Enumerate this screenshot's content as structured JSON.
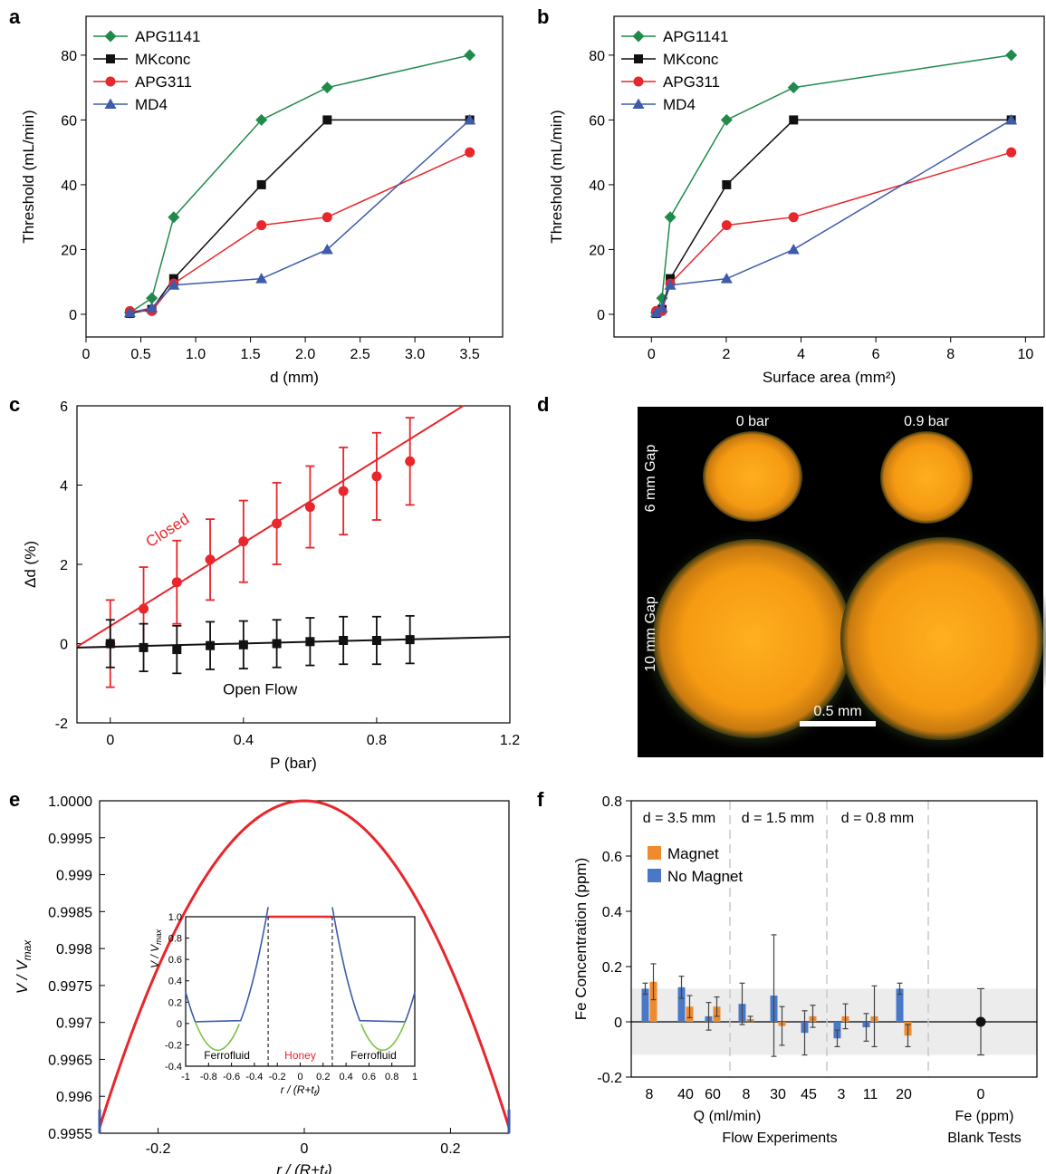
{
  "panel_letters": {
    "a": "a",
    "b": "b",
    "c": "c",
    "d": "d",
    "e": "e",
    "f": "f"
  },
  "colors": {
    "green": "#1f8a4a",
    "black": "#111111",
    "red": "#e8262b",
    "blue": "#3d5ba9",
    "orange": "#ef8a2f",
    "bar_blue": "#4a78c8",
    "band": "#ececec"
  },
  "chart_data": [
    {
      "id": "a",
      "type": "line",
      "xlabel": "d (mm)",
      "ylabel": "Threshold (mL/min)",
      "xlim": [
        0,
        3.8
      ],
      "ylim": [
        -7,
        92
      ],
      "xticks": [
        0,
        0.5,
        1.0,
        1.5,
        2.0,
        2.5,
        3.0,
        3.5
      ],
      "xtick_labels": [
        "0",
        "0.5",
        "1.0",
        "1.5",
        "2.0",
        "2.5",
        "3.0",
        "3.5"
      ],
      "yticks": [
        0,
        20,
        40,
        60,
        80
      ],
      "legend_position": "top-left",
      "series": [
        {
          "name": "APG1141",
          "color": "green",
          "marker": "diamond",
          "x": [
            0.4,
            0.6,
            0.8,
            1.6,
            2.2,
            3.5
          ],
          "y": [
            0.5,
            5,
            30,
            60,
            70,
            80
          ]
        },
        {
          "name": "MKconc",
          "color": "black",
          "marker": "square",
          "x": [
            0.4,
            0.6,
            0.8,
            1.6,
            2.2,
            3.5
          ],
          "y": [
            0.3,
            1.5,
            11,
            40,
            60,
            60
          ]
        },
        {
          "name": "APG311",
          "color": "red",
          "marker": "circle",
          "x": [
            0.4,
            0.6,
            0.8,
            1.6,
            2.2,
            3.5
          ],
          "y": [
            1,
            1,
            9.5,
            27.5,
            30,
            50
          ]
        },
        {
          "name": "MD4",
          "color": "blue",
          "marker": "triangle",
          "x": [
            0.4,
            0.6,
            0.8,
            1.6,
            2.2,
            3.5
          ],
          "y": [
            0.5,
            2,
            9,
            11,
            20,
            60
          ]
        }
      ]
    },
    {
      "id": "b",
      "type": "line",
      "xlabel": "Surface area (mm²)",
      "ylabel": "Threshold (mL/min)",
      "xlim": [
        -1,
        10.5
      ],
      "ylim": [
        -7,
        92
      ],
      "xticks": [
        0,
        2,
        4,
        6,
        8,
        10
      ],
      "xtick_labels": [
        "0",
        "2",
        "4",
        "6",
        "8",
        "10"
      ],
      "yticks": [
        0,
        20,
        40,
        60,
        80
      ],
      "legend_position": "top-left",
      "series": [
        {
          "name": "APG1141",
          "color": "green",
          "marker": "diamond",
          "x": [
            0.126,
            0.283,
            0.503,
            2.01,
            3.8,
            9.62
          ],
          "y": [
            0.5,
            5,
            30,
            60,
            70,
            80
          ]
        },
        {
          "name": "MKconc",
          "color": "black",
          "marker": "square",
          "x": [
            0.126,
            0.283,
            0.503,
            2.01,
            3.8,
            9.62
          ],
          "y": [
            0.3,
            1.5,
            11,
            40,
            60,
            60
          ]
        },
        {
          "name": "APG311",
          "color": "red",
          "marker": "circle",
          "x": [
            0.126,
            0.283,
            0.503,
            2.01,
            3.8,
            9.62
          ],
          "y": [
            1,
            1,
            9.5,
            27.5,
            30,
            50
          ]
        },
        {
          "name": "MD4",
          "color": "blue",
          "marker": "triangle",
          "x": [
            0.126,
            0.283,
            0.503,
            2.01,
            3.8,
            9.62
          ],
          "y": [
            0.5,
            2,
            9,
            11,
            20,
            60
          ]
        }
      ]
    },
    {
      "id": "c",
      "type": "scatter",
      "xlabel": "P (bar)",
      "ylabel": "Δd (%)",
      "xlim": [
        -0.1,
        1.2
      ],
      "ylim": [
        -2,
        6
      ],
      "xticks": [
        0,
        0.4,
        0.8,
        1.2
      ],
      "xtick_labels": [
        "0",
        "0.4",
        "0.8",
        "1.2"
      ],
      "yticks": [
        -2,
        0,
        2,
        4,
        6
      ],
      "ytick_labels": [
        "-2",
        "0",
        "2",
        "4",
        "6"
      ],
      "series": [
        {
          "name": "Closed",
          "color": "red",
          "marker": "circle",
          "x": [
            0,
            0.1,
            0.2,
            0.3,
            0.4,
            0.5,
            0.6,
            0.7,
            0.8,
            0.9
          ],
          "y": [
            0,
            0.88,
            1.55,
            2.12,
            2.58,
            3.03,
            3.45,
            3.85,
            4.22,
            4.6
          ],
          "err": [
            1.1,
            1.05,
            1.05,
            1.02,
            1.03,
            1.03,
            1.03,
            1.1,
            1.1,
            1.1
          ],
          "fit": {
            "x": [
              -0.1,
              1.06
            ],
            "y": [
              -0.08,
              6.0
            ]
          }
        },
        {
          "name": "Open Flow",
          "color": "black",
          "marker": "square",
          "x": [
            0,
            0.1,
            0.2,
            0.3,
            0.4,
            0.5,
            0.6,
            0.7,
            0.8,
            0.9
          ],
          "y": [
            0,
            -0.1,
            -0.15,
            -0.05,
            -0.03,
            0,
            0.05,
            0.08,
            0.08,
            0.1
          ],
          "err": [
            0.6,
            0.6,
            0.6,
            0.6,
            0.6,
            0.6,
            0.6,
            0.6,
            0.6,
            0.6
          ],
          "fit": {
            "x": [
              -0.1,
              1.2
            ],
            "y": [
              -0.1,
              0.17
            ]
          }
        }
      ]
    },
    {
      "id": "e",
      "type": "line",
      "xlabel": "r / (R+tf)",
      "ylabel": "V / Vmax",
      "xlim": [
        -0.28,
        0.28
      ],
      "ylim": [
        0.9955,
        1.0
      ],
      "xticks": [
        -0.2,
        0,
        0.2
      ],
      "xtick_labels": [
        "-0.2",
        "0",
        "0.2"
      ],
      "yticks": [
        0.9955,
        0.996,
        0.9965,
        0.997,
        0.9975,
        0.998,
        0.9985,
        0.999,
        0.9995,
        1.0
      ],
      "ytick_labels": [
        "0.9955",
        "0.996",
        "0.9965",
        "0.997",
        "0.9975",
        "0.998",
        "0.9985",
        "0.999",
        "0.9995",
        "1.0000"
      ],
      "series": [
        {
          "name": "Honey",
          "color": "red",
          "curve": "V/Vmax = 1 - 0.0564 x²"
        }
      ],
      "inset": {
        "xlim": [
          -1,
          1
        ],
        "ylim": [
          -0.4,
          1.0
        ],
        "xticks": [
          -1,
          -0.8,
          -0.6,
          -0.4,
          -0.2,
          0,
          0.2,
          0.4,
          0.6,
          0.8,
          1
        ],
        "xtick_labels": [
          "-1",
          "-0.8",
          "-0.6",
          "-0.4",
          "-0.2",
          "0",
          "0.2",
          "0.4",
          "0.6",
          "0.8",
          "1"
        ],
        "yticks": [
          -0.4,
          -0.2,
          0,
          0.2,
          0.4,
          0.6,
          0.8,
          1.0
        ],
        "ytick_labels": [
          "-0.4",
          "-0.2",
          "0",
          "0.2",
          "0.4",
          "0.6",
          "0.8",
          "1.0"
        ],
        "boundary": 0.28,
        "region_labels": {
          "left": "Ferrofluid",
          "center": "Honey",
          "right": "Ferrofluid"
        }
      }
    },
    {
      "id": "f",
      "type": "bar",
      "ylabel": "Fe Concentration (ppm)",
      "ylim": [
        -0.2,
        0.8
      ],
      "yticks": [
        -0.2,
        0,
        0.2,
        0.4,
        0.6,
        0.8
      ],
      "ytick_labels": [
        "-0.2",
        "0",
        "0.2",
        "0.4",
        "0.6",
        "0.8"
      ],
      "band": [
        -0.12,
        0.12
      ],
      "categories": [
        "8",
        "40",
        "60",
        "8",
        "30",
        "45",
        "3",
        "11",
        "20"
      ],
      "groups": [
        {
          "label": "d = 3.5 mm"
        },
        {
          "label": "d = 1.5 mm"
        },
        {
          "label": "d = 0.8 mm"
        }
      ],
      "series": [
        {
          "name": "No Magnet",
          "color": "bar_blue",
          "values": [
            0.12,
            0.125,
            0.02,
            0.065,
            0.095,
            -0.04,
            -0.06,
            -0.02,
            0.12
          ],
          "err": [
            0.02,
            0.04,
            0.05,
            0.075,
            0.22,
            0.08,
            0.03,
            0.05,
            0.02
          ]
        },
        {
          "name": "Magnet",
          "color": "orange",
          "values": [
            0.145,
            0.055,
            0.055,
            0.01,
            -0.015,
            0.02,
            0.02,
            0.02,
            -0.05
          ],
          "err": [
            0.065,
            0.04,
            0.035,
            0.01,
            0.07,
            0.04,
            0.045,
            0.11,
            0.04
          ]
        }
      ],
      "blank": {
        "category": "0",
        "value": 0,
        "err": 0.12
      },
      "xlabel": "Q (ml/min)",
      "xgroup_label": "Flow Experiments",
      "blank_label": "Fe (ppm)",
      "blank_group_label": "Blank Tests",
      "legend_position": "upper-left"
    }
  ],
  "panel_d": {
    "labels": {
      "p0": "0 bar",
      "p1": "0.9 bar",
      "row1": "6 mm Gap",
      "row2": "10 mm Gap",
      "scale": "0.5 mm"
    }
  }
}
